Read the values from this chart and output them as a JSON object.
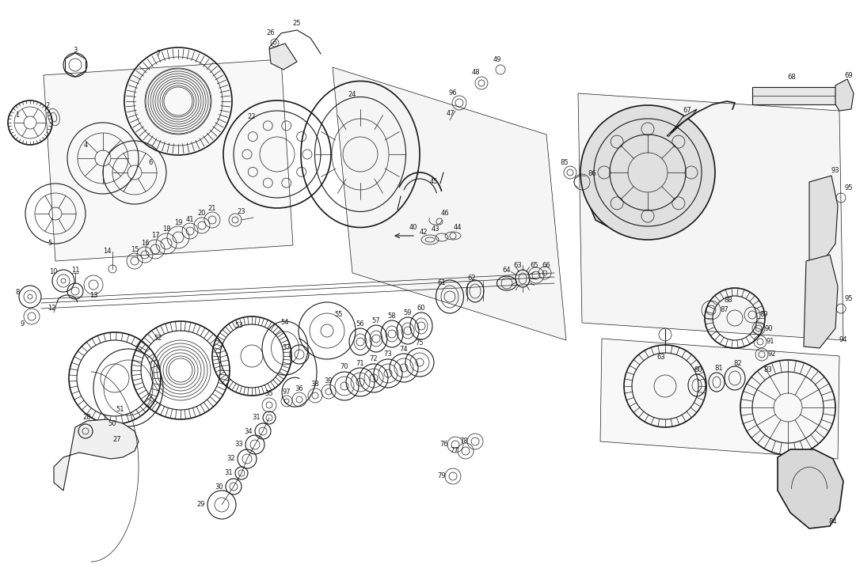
{
  "background_color": "#ffffff",
  "figsize": [
    10.81,
    7.23
  ],
  "dpi": 100,
  "line_color": "#1a1a1a",
  "lw_thin": 0.5,
  "lw_med": 0.8,
  "lw_thick": 1.2,
  "label_fs": 6.0
}
